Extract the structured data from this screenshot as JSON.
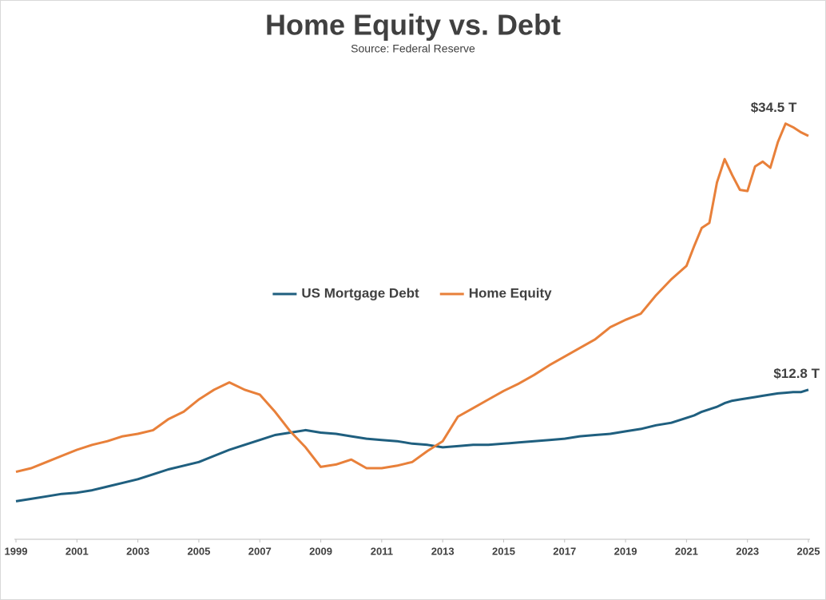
{
  "chart_data": {
    "type": "line",
    "title": "Home Equity vs. Debt",
    "subtitle": "Source: Federal Reserve",
    "x": [
      1999,
      1999.5,
      2000,
      2000.5,
      2001,
      2001.5,
      2002,
      2002.5,
      2003,
      2003.5,
      2004,
      2004.5,
      2005,
      2005.5,
      2006,
      2006.5,
      2007,
      2007.5,
      2008,
      2008.5,
      2009,
      2009.5,
      2010,
      2010.5,
      2011,
      2011.5,
      2012,
      2012.5,
      2013,
      2013.5,
      2014,
      2014.5,
      2015,
      2015.5,
      2016,
      2016.5,
      2017,
      2017.5,
      2018,
      2018.5,
      2019,
      2019.5,
      2020,
      2020.5,
      2021,
      2021.25,
      2021.5,
      2021.75,
      2022,
      2022.25,
      2022.5,
      2022.75,
      2023,
      2023.25,
      2023.5,
      2023.75,
      2024,
      2024.25,
      2024.5,
      2024.75,
      2025
    ],
    "series": [
      {
        "name": "US Mortgage Debt",
        "color": "#1f5f7f",
        "values": [
          3.7,
          3.9,
          4.1,
          4.3,
          4.4,
          4.6,
          4.9,
          5.2,
          5.5,
          5.9,
          6.3,
          6.6,
          6.9,
          7.4,
          7.9,
          8.3,
          8.7,
          9.1,
          9.3,
          9.5,
          9.3,
          9.2,
          9.0,
          8.8,
          8.7,
          8.6,
          8.4,
          8.3,
          8.1,
          8.2,
          8.3,
          8.3,
          8.4,
          8.5,
          8.6,
          8.7,
          8.8,
          9.0,
          9.1,
          9.2,
          9.4,
          9.6,
          9.9,
          10.1,
          10.5,
          10.7,
          11.0,
          11.2,
          11.4,
          11.7,
          11.9,
          12.0,
          12.1,
          12.2,
          12.3,
          12.4,
          12.5,
          12.55,
          12.6,
          12.6,
          12.8
        ]
      },
      {
        "name": "Home Equity",
        "color": "#e8803a",
        "values": [
          6.1,
          6.4,
          6.9,
          7.4,
          7.9,
          8.3,
          8.6,
          9.0,
          9.2,
          9.5,
          10.4,
          11.0,
          12.0,
          12.8,
          13.4,
          12.8,
          12.4,
          11.0,
          9.4,
          8.1,
          6.5,
          6.7,
          7.1,
          6.4,
          6.4,
          6.6,
          6.9,
          7.8,
          8.6,
          10.6,
          11.3,
          12.0,
          12.7,
          13.3,
          14.0,
          14.8,
          15.5,
          16.2,
          16.9,
          17.9,
          18.5,
          19.0,
          20.5,
          21.8,
          22.9,
          24.5,
          26.0,
          26.4,
          29.7,
          31.6,
          30.3,
          29.1,
          29.0,
          31.0,
          31.4,
          30.9,
          33.0,
          34.5,
          34.2,
          33.8,
          33.5
        ]
      }
    ],
    "annotations": [
      {
        "text": "$34.5 T",
        "x": 2024.25,
        "y": 34.5
      },
      {
        "text": "$12.8 T",
        "x": 2025,
        "y": 12.8
      }
    ],
    "xlim": [
      1999,
      2025
    ],
    "xticks": [
      1999,
      2001,
      2003,
      2005,
      2007,
      2009,
      2011,
      2013,
      2015,
      2017,
      2019,
      2021,
      2023,
      2025
    ],
    "ylim": [
      0.6,
      38
    ],
    "legend": "center",
    "grid": false
  }
}
